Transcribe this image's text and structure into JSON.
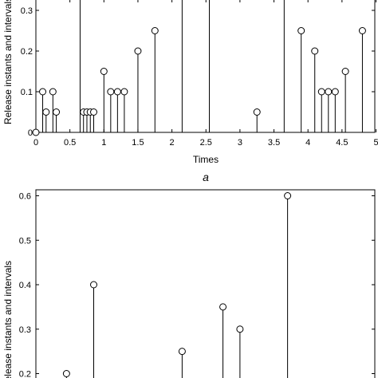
{
  "chart_data": [
    {
      "type": "stem",
      "xlabel": "Times",
      "ylabel": "Release instants and intervals",
      "subfigure_label": "a",
      "xlim": [
        0,
        5
      ],
      "ylim": [
        0,
        0.3
      ],
      "x_ticks": [
        0,
        0.5,
        1,
        1.5,
        2,
        2.5,
        3,
        3.5,
        4,
        4.5,
        5
      ],
      "y_ticks": [
        0,
        0.1,
        0.2,
        0.3
      ],
      "x_tick_labels": [
        "0",
        "0.5",
        "1",
        "1.5",
        "2",
        "2.5",
        "3",
        "3.5",
        "4",
        "4.5",
        "5"
      ],
      "y_tick_labels": [
        "0",
        "0.1",
        "0.2",
        "0.3"
      ],
      "stems": [
        {
          "x": 0.0,
          "y": 0.0
        },
        {
          "x": 0.1,
          "y": 0.1
        },
        {
          "x": 0.15,
          "y": 0.05
        },
        {
          "x": 0.25,
          "y": 0.1
        },
        {
          "x": 0.3,
          "y": 0.05
        },
        {
          "x": 0.7,
          "y": 0.05
        },
        {
          "x": 0.75,
          "y": 0.05
        },
        {
          "x": 0.8,
          "y": 0.05
        },
        {
          "x": 0.85,
          "y": 0.05
        },
        {
          "x": 1.0,
          "y": 0.15
        },
        {
          "x": 1.1,
          "y": 0.1
        },
        {
          "x": 1.2,
          "y": 0.1
        },
        {
          "x": 1.3,
          "y": 0.1
        },
        {
          "x": 1.5,
          "y": 0.2
        },
        {
          "x": 1.75,
          "y": 0.25
        },
        {
          "x": 3.25,
          "y": 0.05
        },
        {
          "x": 3.9,
          "y": 0.25
        },
        {
          "x": 4.1,
          "y": 0.2
        },
        {
          "x": 4.2,
          "y": 0.1
        },
        {
          "x": 4.3,
          "y": 0.1
        },
        {
          "x": 4.4,
          "y": 0.1
        },
        {
          "x": 4.55,
          "y": 0.15
        },
        {
          "x": 4.8,
          "y": 0.25
        }
      ],
      "tall_stems_x": [
        0.65,
        2.15,
        2.55,
        3.65
      ]
    },
    {
      "type": "stem",
      "ylabel": "Release instants and intervals",
      "xlim": [
        0,
        5
      ],
      "ylim": [
        0.2,
        0.6
      ],
      "y_ticks": [
        0.2,
        0.3,
        0.4,
        0.5,
        0.6
      ],
      "y_tick_labels": [
        "0.2",
        "0.3",
        "0.4",
        "0.5",
        "0.6"
      ],
      "stems": [
        {
          "x": 0.45,
          "y": 0.2
        },
        {
          "x": 0.85,
          "y": 0.4
        },
        {
          "x": 2.15,
          "y": 0.25
        },
        {
          "x": 2.75,
          "y": 0.35
        },
        {
          "x": 3.0,
          "y": 0.3
        },
        {
          "x": 3.7,
          "y": 0.6
        }
      ]
    }
  ]
}
